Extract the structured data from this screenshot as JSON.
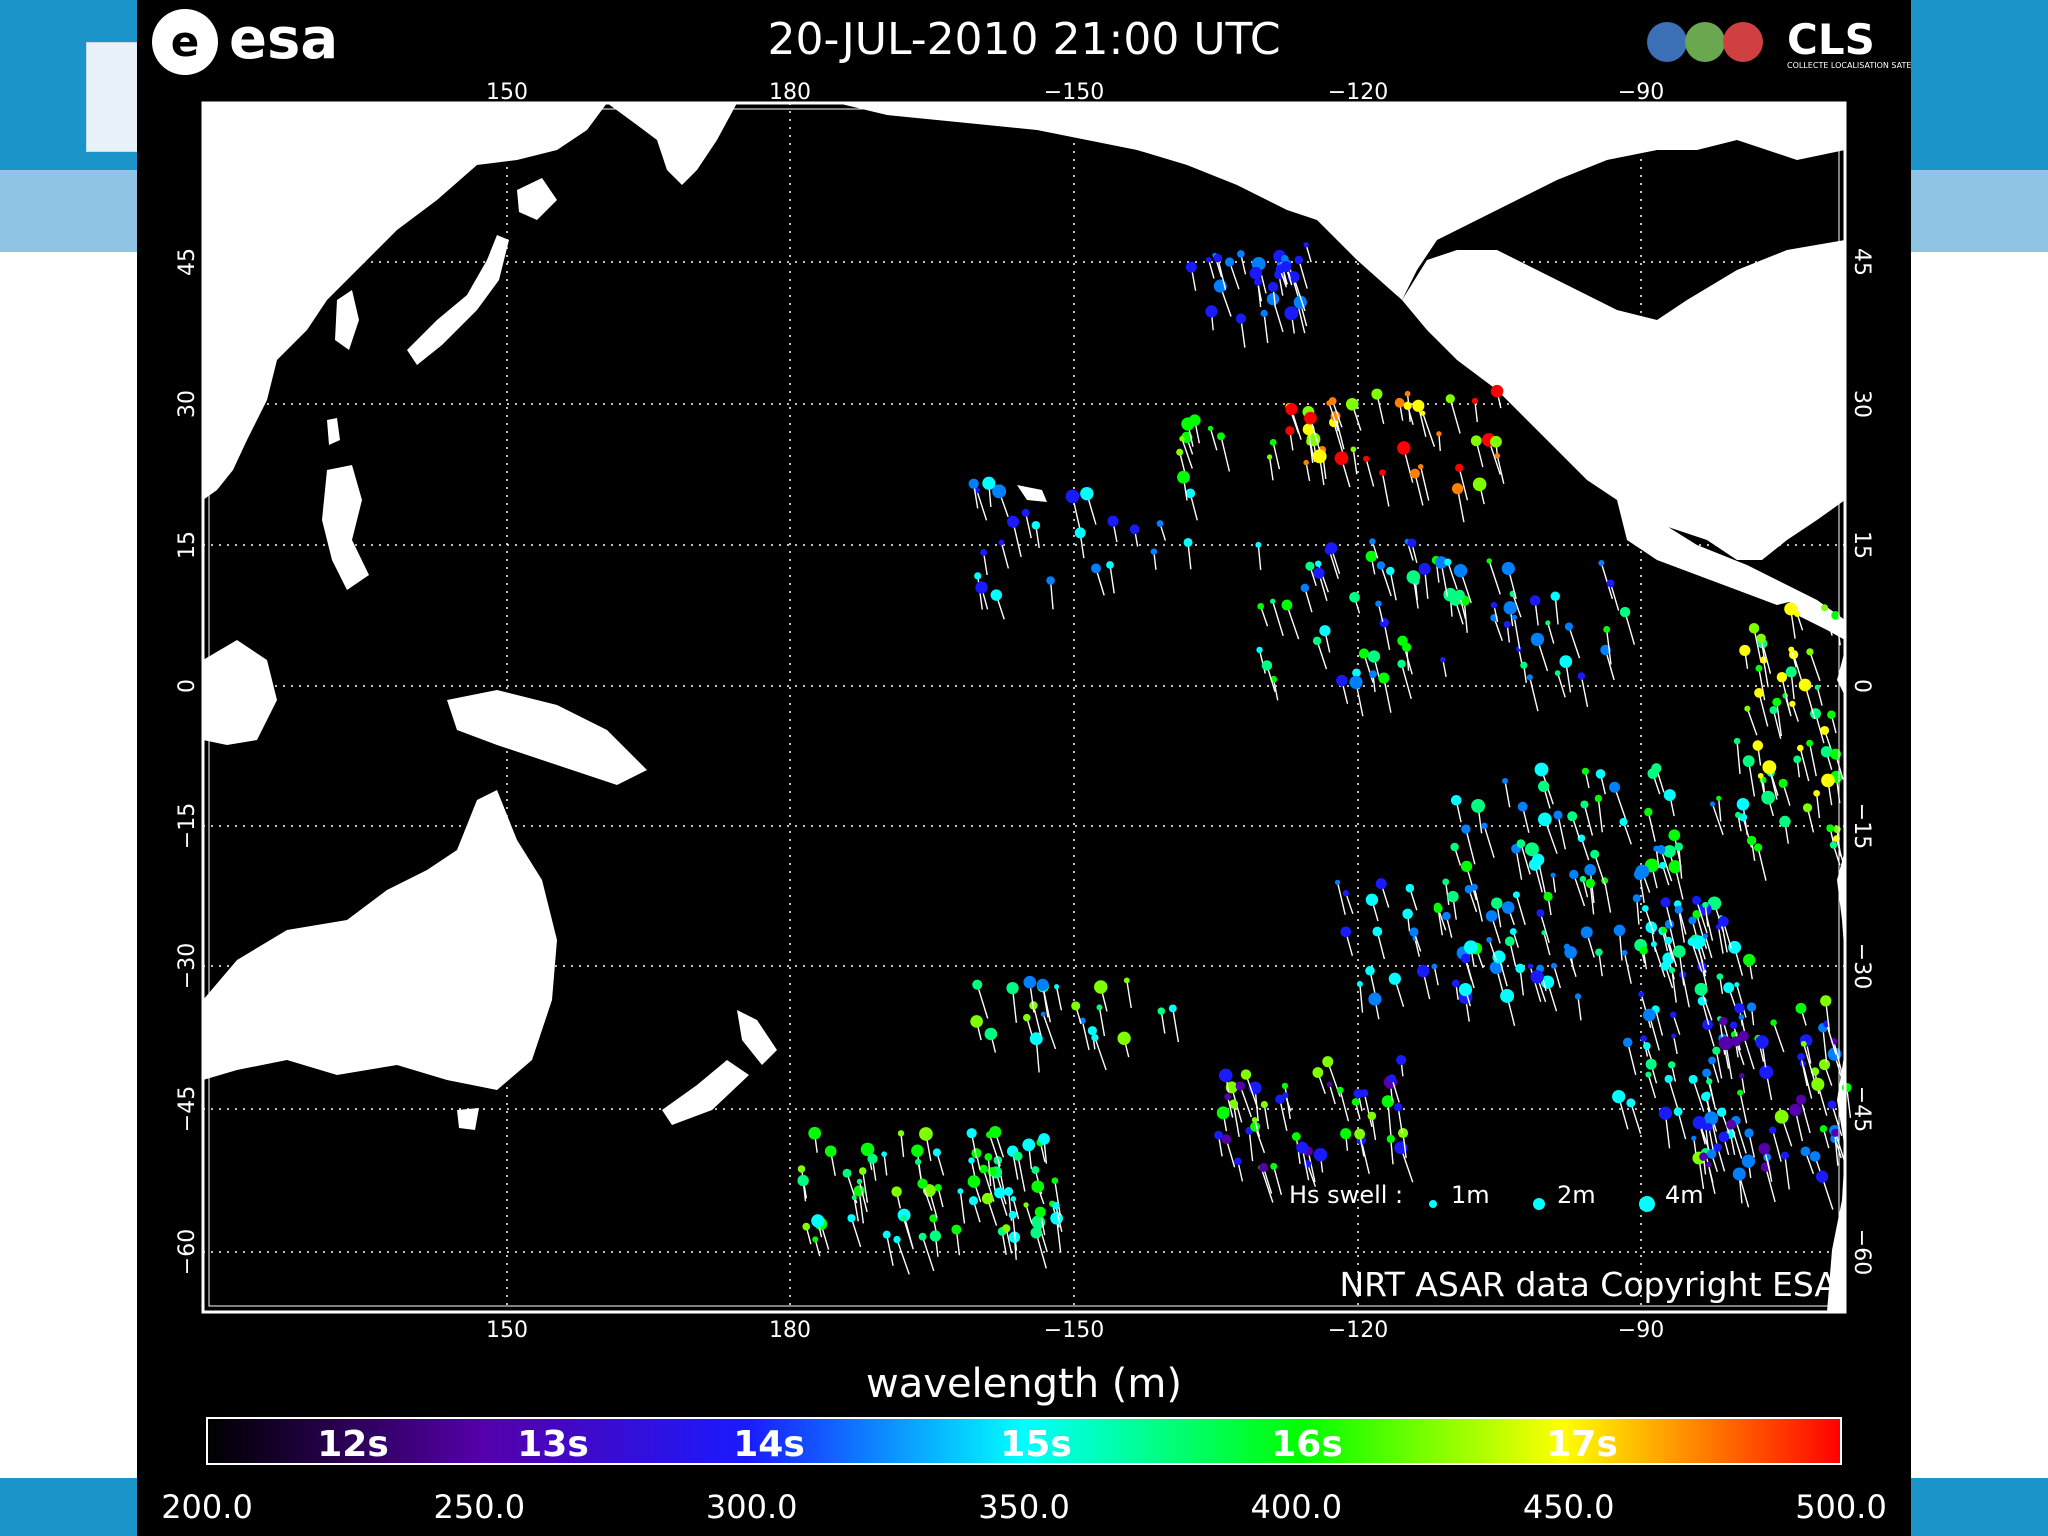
{
  "header": {
    "title": "20-JUL-2010 21:00 UTC",
    "esa_logo_text": "esa",
    "cls_logo_text": "CLS",
    "cls_tagline": "COLLECTE LOCALISATION SATELLITES"
  },
  "map": {
    "lon_ticks_top": [
      "150",
      "180",
      "−150",
      "−120",
      "−90"
    ],
    "lon_ticks_bottom": [
      "150",
      "180",
      "−150",
      "−120",
      "−90"
    ],
    "lat_ticks": [
      "45",
      "30",
      "15",
      "0",
      "−15",
      "−30",
      "−45",
      "−60"
    ],
    "legend": {
      "label": "Hs swell :",
      "sizes": [
        "1m",
        "2m",
        "4m"
      ]
    },
    "copyright": "NRT ASAR data Copyright ESA"
  },
  "colorbar": {
    "title": "wavelength (m)",
    "period_labels": [
      "12s",
      "13s",
      "14s",
      "15s",
      "16s",
      "17s"
    ],
    "value_labels": [
      "200.0",
      "250.0",
      "300.0",
      "350.0",
      "400.0",
      "450.0",
      "500.0"
    ],
    "colors": [
      "#000000",
      "#5500aa",
      "#1a1aff",
      "#00ffff",
      "#00ff00",
      "#ffff00",
      "#ff0000"
    ]
  }
}
